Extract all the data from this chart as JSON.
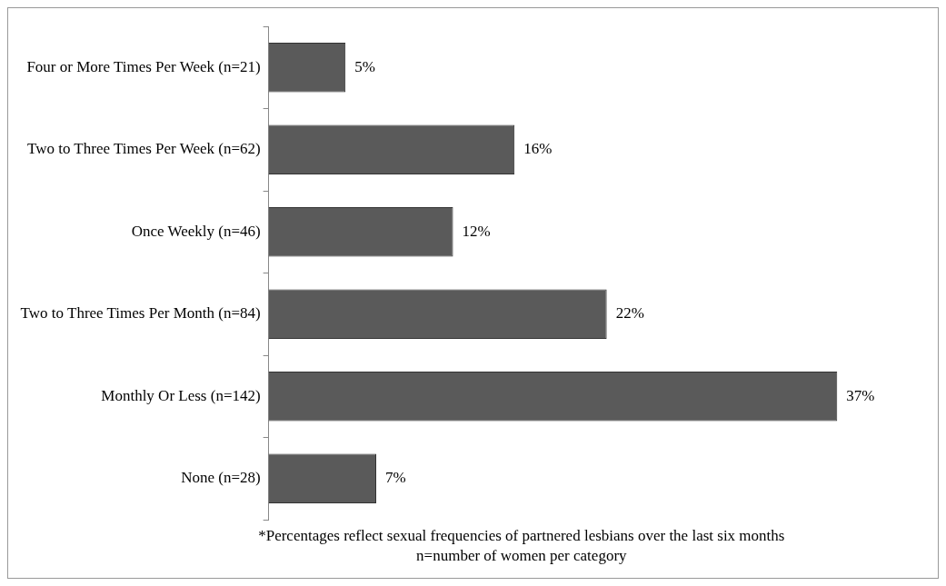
{
  "chart_data": {
    "type": "bar",
    "orientation": "horizontal",
    "tick_labels": "y",
    "categories": [
      "Four or More Times Per Week (n=21)",
      "Two to Three Times Per Week (n=62)",
      "Once Weekly (n=46)",
      "Two to Three Times Per Month (n=84)",
      "Monthly Or Less (n=142)",
      "None (n=28)"
    ],
    "values": [
      5,
      16,
      12,
      22,
      37,
      7
    ],
    "value_labels": [
      "5%",
      "16%",
      "12%",
      "22%",
      "37%",
      "7%"
    ],
    "color": "#5a5a5a",
    "legend": false,
    "annotations": [
      "*Percentages reflect sexual frequencies of partnered lesbians over the last six months",
      "n=number of women per category"
    ]
  }
}
